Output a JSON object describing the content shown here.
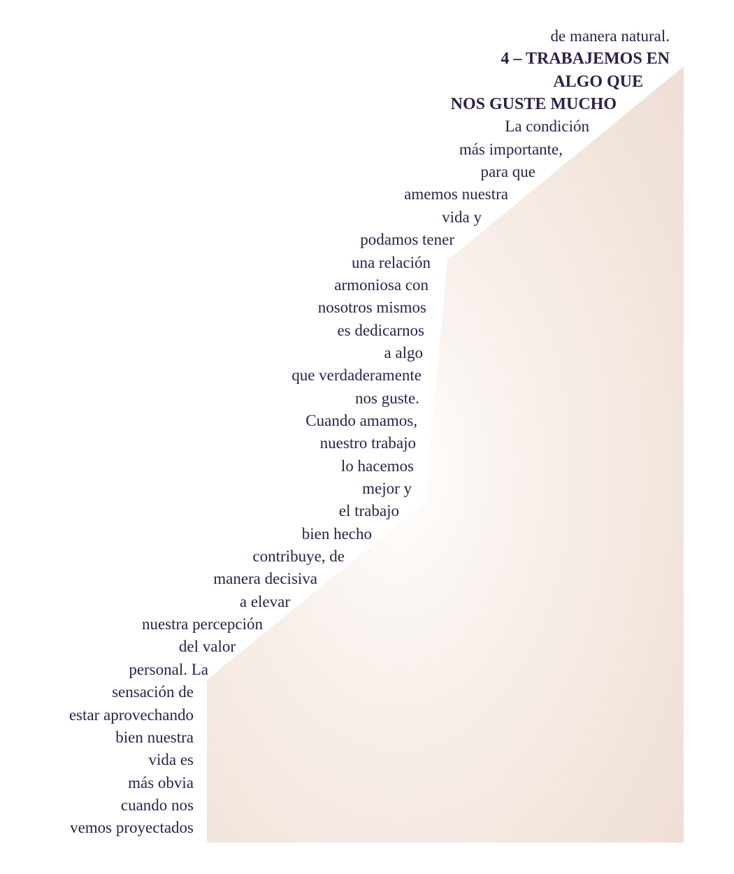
{
  "document": {
    "lines": [
      {
        "text": "de manera natural.",
        "bold": false
      },
      {
        "text": "4 – TRABAJEMOS EN",
        "bold": true
      },
      {
        "text": "ALGO QUE",
        "bold": true
      },
      {
        "text": "NOS GUSTE MUCHO",
        "bold": true
      },
      {
        "text": "La condición",
        "bold": false
      },
      {
        "text": "más importante,",
        "bold": false
      },
      {
        "text": "para que",
        "bold": false
      },
      {
        "text": "amemos nuestra",
        "bold": false
      },
      {
        "text": "vida y",
        "bold": false
      },
      {
        "text": "podamos tener",
        "bold": false
      },
      {
        "text": "una relación",
        "bold": false
      },
      {
        "text": "armoniosa con",
        "bold": false
      },
      {
        "text": "nosotros mismos",
        "bold": false
      },
      {
        "text": "es dedicarnos",
        "bold": false
      },
      {
        "text": "a algo",
        "bold": false
      },
      {
        "text": "que verdaderamente",
        "bold": false
      },
      {
        "text": "nos guste.",
        "bold": false
      },
      {
        "text": "Cuando amamos,",
        "bold": false
      },
      {
        "text": "nuestro trabajo",
        "bold": false
      },
      {
        "text": "lo hacemos",
        "bold": false
      },
      {
        "text": "mejor y",
        "bold": false
      },
      {
        "text": "el trabajo",
        "bold": false
      },
      {
        "text": "bien hecho",
        "bold": false
      },
      {
        "text": "contribuye, de",
        "bold": false
      },
      {
        "text": "manera decisiva",
        "bold": false
      },
      {
        "text": "a elevar",
        "bold": false
      },
      {
        "text": "nuestra percepción",
        "bold": false
      },
      {
        "text": "del valor",
        "bold": false
      },
      {
        "text": "personal. La",
        "bold": false
      },
      {
        "text": "sensación de",
        "bold": false
      },
      {
        "text": "estar aprovechando",
        "bold": false
      },
      {
        "text": "bien nuestra",
        "bold": false
      },
      {
        "text": "vida es",
        "bold": false
      },
      {
        "text": "más obvia",
        "bold": false
      },
      {
        "text": "cuando nos",
        "bold": false
      },
      {
        "text": "vemos proyectados",
        "bold": false
      }
    ]
  },
  "colors": {
    "text": "#2d1f47",
    "shape_light": "#ffffff",
    "shape_dark": "#efdfd6"
  }
}
